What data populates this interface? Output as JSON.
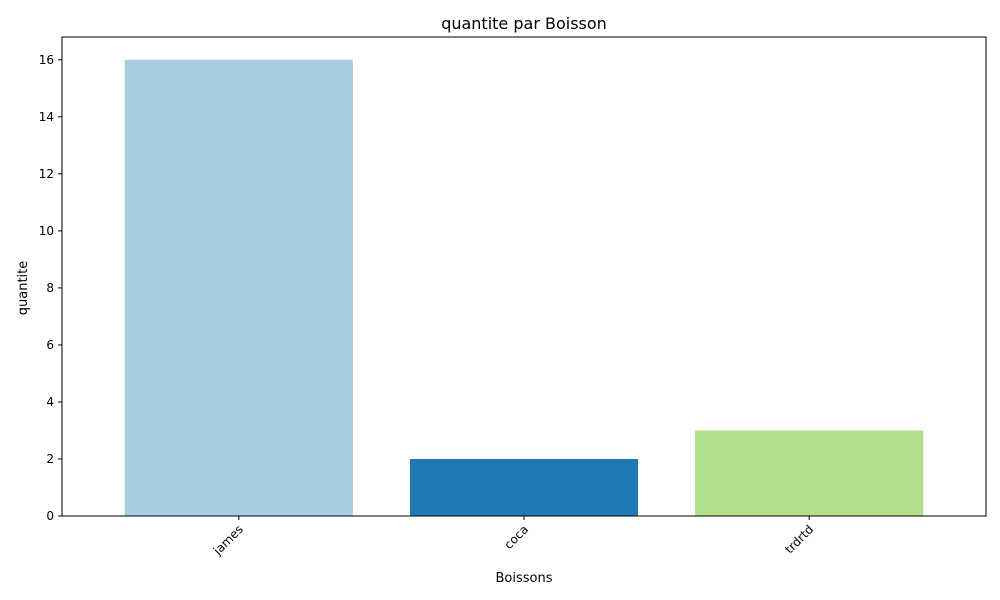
{
  "chart_data": {
    "type": "bar",
    "title": "quantite par Boisson",
    "xlabel": "Boissons",
    "ylabel": "quantite",
    "categories": [
      "james",
      "coca",
      "trdrtd"
    ],
    "values": [
      16,
      2,
      3
    ],
    "colors": [
      "#a6cee3",
      "#1f78b4",
      "#b2df8a"
    ],
    "ylim": [
      0,
      16.8
    ],
    "yticks": [
      "0",
      "2",
      "4",
      "6",
      "8",
      "10",
      "12",
      "14",
      "16"
    ],
    "grid": false,
    "legend": "none"
  }
}
